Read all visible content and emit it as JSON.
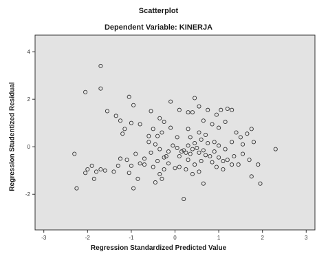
{
  "chart_data": {
    "type": "scatter",
    "title": "Scatterplot",
    "subtitle": "Dependent Variable: KINERJA",
    "xlabel": "Regression Standardized Predicted Value",
    "ylabel": "Regression Studentized Residual",
    "xlim": [
      -3.2,
      3.2
    ],
    "ylim": [
      -3.5,
      4.7
    ],
    "x_ticks": [
      -3,
      -2,
      -1,
      0,
      1,
      2,
      3
    ],
    "y_ticks": [
      -2,
      0,
      2,
      4
    ],
    "grid": false,
    "colors": {
      "plot_bg": "#e3e3e3",
      "frame": "#333333",
      "marker": "#333333"
    },
    "points": [
      {
        "x": -1.7,
        "y": 3.4
      },
      {
        "x": -2.05,
        "y": 2.3
      },
      {
        "x": -1.7,
        "y": 2.45
      },
      {
        "x": -1.05,
        "y": 2.1
      },
      {
        "x": -1.55,
        "y": 1.5
      },
      {
        "x": -1.35,
        "y": 1.3
      },
      {
        "x": -0.95,
        "y": 1.75
      },
      {
        "x": -1.25,
        "y": 1.1
      },
      {
        "x": -1.15,
        "y": 0.75
      },
      {
        "x": -1.2,
        "y": 0.55
      },
      {
        "x": -1.0,
        "y": 1.0
      },
      {
        "x": -0.8,
        "y": 0.95
      },
      {
        "x": -0.55,
        "y": 1.5
      },
      {
        "x": -0.35,
        "y": 1.2
      },
      {
        "x": -0.25,
        "y": 1.05
      },
      {
        "x": -0.1,
        "y": 1.9
      },
      {
        "x": 0.1,
        "y": 1.55
      },
      {
        "x": 0.3,
        "y": 1.45
      },
      {
        "x": 0.45,
        "y": 2.05
      },
      {
        "x": 0.55,
        "y": 1.7
      },
      {
        "x": 0.75,
        "y": 1.55
      },
      {
        "x": 0.95,
        "y": 1.35
      },
      {
        "x": 1.05,
        "y": 1.55
      },
      {
        "x": 1.2,
        "y": 1.6
      },
      {
        "x": 1.3,
        "y": 1.55
      },
      {
        "x": 1.15,
        "y": 1.05
      },
      {
        "x": 0.65,
        "y": 1.1
      },
      {
        "x": 0.4,
        "y": 1.45
      },
      {
        "x": -0.5,
        "y": 0.75
      },
      {
        "x": -0.4,
        "y": 0.45
      },
      {
        "x": -0.3,
        "y": 0.6
      },
      {
        "x": -0.1,
        "y": 0.8
      },
      {
        "x": 0.05,
        "y": 0.4
      },
      {
        "x": 0.3,
        "y": 0.75
      },
      {
        "x": 0.55,
        "y": 0.6
      },
      {
        "x": 0.7,
        "y": 0.5
      },
      {
        "x": 0.85,
        "y": 0.95
      },
      {
        "x": 1.0,
        "y": 0.8
      },
      {
        "x": 1.4,
        "y": 0.6
      },
      {
        "x": 1.5,
        "y": 0.4
      },
      {
        "x": 1.65,
        "y": 0.55
      },
      {
        "x": 1.75,
        "y": 0.75
      },
      {
        "x": 1.8,
        "y": 0.2
      },
      {
        "x": 1.55,
        "y": 0.1
      },
      {
        "x": 1.3,
        "y": 0.2
      },
      {
        "x": 1.15,
        "y": -0.1
      },
      {
        "x": 1.0,
        "y": 0.05
      },
      {
        "x": 0.9,
        "y": 0.2
      },
      {
        "x": 0.75,
        "y": 0.15
      },
      {
        "x": 0.6,
        "y": 0.3
      },
      {
        "x": 0.45,
        "y": 0.15
      },
      {
        "x": 0.3,
        "y": 0.05
      },
      {
        "x": 0.2,
        "y": -0.15
      },
      {
        "x": 0.15,
        "y": -0.2
      },
      {
        "x": 0.25,
        "y": -0.25
      },
      {
        "x": 0.35,
        "y": -0.3
      },
      {
        "x": 0.4,
        "y": -0.1
      },
      {
        "x": 0.5,
        "y": -0.05
      },
      {
        "x": 0.55,
        "y": -0.25
      },
      {
        "x": 0.65,
        "y": -0.15
      },
      {
        "x": 0.7,
        "y": -0.35
      },
      {
        "x": 0.8,
        "y": -0.4
      },
      {
        "x": 0.9,
        "y": -0.2
      },
      {
        "x": 1.0,
        "y": -0.45
      },
      {
        "x": 1.1,
        "y": -0.6
      },
      {
        "x": 1.2,
        "y": -0.55
      },
      {
        "x": 1.35,
        "y": -0.4
      },
      {
        "x": 1.45,
        "y": -0.75
      },
      {
        "x": 1.55,
        "y": -0.3
      },
      {
        "x": 1.7,
        "y": -0.55
      },
      {
        "x": 1.9,
        "y": -0.75
      },
      {
        "x": 2.3,
        "y": -0.1
      },
      {
        "x": 1.75,
        "y": -1.25
      },
      {
        "x": 1.95,
        "y": -1.55
      },
      {
        "x": 1.1,
        "y": -0.95
      },
      {
        "x": 0.85,
        "y": -0.65
      },
      {
        "x": 0.6,
        "y": -0.6
      },
      {
        "x": 0.45,
        "y": -0.75
      },
      {
        "x": 0.3,
        "y": -0.55
      },
      {
        "x": 0.1,
        "y": -0.4
      },
      {
        "x": 0.05,
        "y": -0.05
      },
      {
        "x": -0.05,
        "y": 0.05
      },
      {
        "x": -0.15,
        "y": -0.2
      },
      {
        "x": -0.25,
        "y": -0.45
      },
      {
        "x": -0.35,
        "y": -0.1
      },
      {
        "x": -0.45,
        "y": 0.1
      },
      {
        "x": -0.55,
        "y": -0.25
      },
      {
        "x": -0.6,
        "y": 0.2
      },
      {
        "x": -0.7,
        "y": -0.5
      },
      {
        "x": -0.8,
        "y": -0.7
      },
      {
        "x": -0.9,
        "y": -0.3
      },
      {
        "x": -1.0,
        "y": -0.8
      },
      {
        "x": -1.05,
        "y": -1.1
      },
      {
        "x": -0.85,
        "y": -1.35
      },
      {
        "x": -0.7,
        "y": -0.75
      },
      {
        "x": -0.5,
        "y": -0.85
      },
      {
        "x": -0.35,
        "y": -1.15
      },
      {
        "x": -0.25,
        "y": -0.95
      },
      {
        "x": -0.15,
        "y": -0.7
      },
      {
        "x": 0.0,
        "y": -0.9
      },
      {
        "x": 0.1,
        "y": -0.85
      },
      {
        "x": 0.25,
        "y": -0.95
      },
      {
        "x": 0.4,
        "y": -1.15
      },
      {
        "x": 0.55,
        "y": -1.05
      },
      {
        "x": 0.65,
        "y": -1.55
      },
      {
        "x": 0.2,
        "y": -2.2
      },
      {
        "x": -0.3,
        "y": -1.35
      },
      {
        "x": -0.45,
        "y": -1.5
      },
      {
        "x": -0.95,
        "y": -1.75
      },
      {
        "x": -1.1,
        "y": -0.55
      },
      {
        "x": -1.3,
        "y": -0.8
      },
      {
        "x": -1.4,
        "y": -1.05
      },
      {
        "x": -1.6,
        "y": -1.0
      },
      {
        "x": -1.7,
        "y": -0.95
      },
      {
        "x": -1.8,
        "y": -1.05
      },
      {
        "x": -1.9,
        "y": -0.8
      },
      {
        "x": -2.0,
        "y": -0.95
      },
      {
        "x": -2.05,
        "y": -1.1
      },
      {
        "x": -1.85,
        "y": -1.35
      },
      {
        "x": -2.25,
        "y": -1.75
      },
      {
        "x": -2.3,
        "y": -0.3
      },
      {
        "x": -1.25,
        "y": -0.5
      },
      {
        "x": -0.6,
        "y": 0.45
      },
      {
        "x": -0.2,
        "y": -0.4
      },
      {
        "x": 0.95,
        "y": -0.85
      },
      {
        "x": 1.3,
        "y": -0.75
      },
      {
        "x": 0.35,
        "y": 0.4
      },
      {
        "x": -0.4,
        "y": -0.6
      }
    ]
  }
}
